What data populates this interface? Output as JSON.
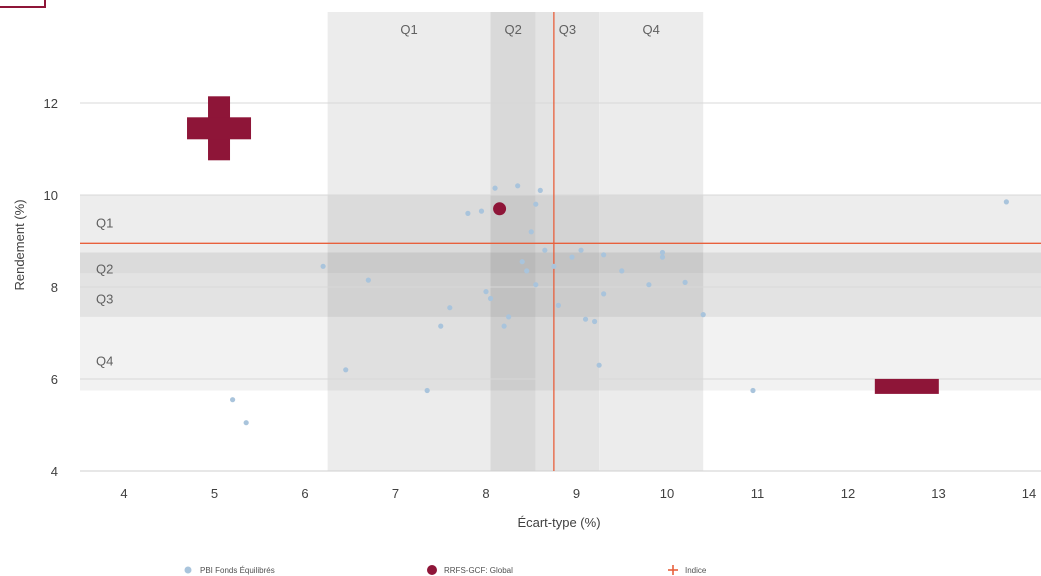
{
  "chart_data": {
    "type": "scatter",
    "xlabel": "Écart-type (%)",
    "ylabel": "Rendement (%)",
    "xlim": [
      3.5,
      14.3
    ],
    "ylim": [
      4,
      14
    ],
    "x_ticks": [
      4,
      5,
      6,
      7,
      8,
      9,
      10,
      11,
      12,
      13,
      14
    ],
    "y_ticks": [
      4,
      6,
      8,
      10,
      12
    ],
    "grid": "horizontal",
    "legend_position": "bottom",
    "x_quartile_bands": [
      {
        "label": "Q1",
        "from": 6.25,
        "to": 8.05
      },
      {
        "label": "Q2",
        "from": 8.05,
        "to": 8.55
      },
      {
        "label": "Q3",
        "from": 8.55,
        "to": 9.25
      },
      {
        "label": "Q4",
        "from": 9.25,
        "to": 10.4
      }
    ],
    "y_quartile_bands": [
      {
        "label": "Q1",
        "from": 8.75,
        "to": 10.0
      },
      {
        "label": "Q2",
        "from": 8.3,
        "to": 8.75
      },
      {
        "label": "Q3",
        "from": 7.35,
        "to": 8.3
      },
      {
        "label": "Q4",
        "from": 5.75,
        "to": 7.35
      }
    ],
    "series": [
      {
        "name": "PBI Fonds Équilibrés",
        "color": "#a9c4dc",
        "points": [
          [
            5.2,
            5.55
          ],
          [
            5.35,
            5.05
          ],
          [
            6.2,
            8.45
          ],
          [
            6.45,
            6.2
          ],
          [
            6.7,
            8.15
          ],
          [
            7.35,
            5.75
          ],
          [
            7.5,
            7.15
          ],
          [
            7.6,
            7.55
          ],
          [
            7.8,
            9.6
          ],
          [
            7.95,
            9.65
          ],
          [
            8.0,
            7.9
          ],
          [
            8.05,
            7.75
          ],
          [
            8.1,
            10.15
          ],
          [
            8.2,
            7.15
          ],
          [
            8.25,
            7.35
          ],
          [
            8.35,
            10.2
          ],
          [
            8.4,
            8.55
          ],
          [
            8.45,
            8.35
          ],
          [
            8.5,
            9.2
          ],
          [
            8.55,
            9.8
          ],
          [
            8.55,
            8.05
          ],
          [
            8.6,
            10.1
          ],
          [
            8.65,
            8.8
          ],
          [
            8.75,
            8.45
          ],
          [
            8.8,
            7.6
          ],
          [
            8.95,
            8.65
          ],
          [
            9.05,
            8.8
          ],
          [
            9.1,
            7.3
          ],
          [
            9.2,
            7.25
          ],
          [
            9.25,
            6.3
          ],
          [
            9.3,
            8.7
          ],
          [
            9.3,
            7.85
          ],
          [
            9.5,
            8.35
          ],
          [
            9.8,
            8.05
          ],
          [
            9.95,
            8.75
          ],
          [
            9.95,
            8.65
          ],
          [
            10.2,
            8.1
          ],
          [
            10.4,
            7.4
          ],
          [
            10.95,
            5.75
          ],
          [
            13.75,
            9.85
          ]
        ]
      },
      {
        "name": "RRFS-GCF: Global",
        "color": "#8e1538",
        "points": [
          [
            8.15,
            9.7
          ]
        ]
      },
      {
        "name": "Indice",
        "color": "#e8603c",
        "points": [
          [
            8.75,
            8.95
          ]
        ]
      }
    ],
    "symbols": [
      {
        "name": "plus-symbol",
        "x": 5.05,
        "y": 11.45,
        "color": "#8e1538"
      },
      {
        "name": "minus-symbol",
        "x": 12.65,
        "y": 5.85,
        "color": "#8e1538"
      }
    ]
  }
}
